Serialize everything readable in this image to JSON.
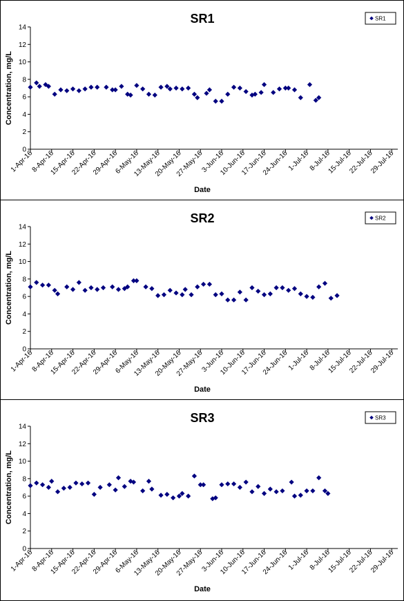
{
  "chart_data": [
    {
      "type": "scatter",
      "title": "SR1",
      "xlabel": "Date",
      "ylabel": "Concentration, mg/L",
      "ylim": [
        0,
        14
      ],
      "yticks": [
        0,
        2,
        4,
        6,
        8,
        10,
        12,
        14
      ],
      "xlim": [
        "2016-04-01",
        "2016-07-31"
      ],
      "xtick_labels": [
        "1-Apr-16",
        "8-Apr-16",
        "15-Apr-16",
        "22-Apr-16",
        "29-Apr-16",
        "6-May-16",
        "13-May-16",
        "20-May-16",
        "27-May-16",
        "3-Jun-16",
        "10-Jun-16",
        "17-Jun-16",
        "24-Jun-16",
        "1-Jul-16",
        "8-Jul-16",
        "15-Jul-16",
        "22-Jul-16",
        "29-Jul-16"
      ],
      "legend": "top-right",
      "grid": false,
      "marker_color": "#000080",
      "series": [
        {
          "name": "SR1",
          "points": [
            [
              "2016-04-01",
              7.1
            ],
            [
              "2016-04-03",
              7.6
            ],
            [
              "2016-04-04",
              7.2
            ],
            [
              "2016-04-06",
              7.4
            ],
            [
              "2016-04-07",
              7.2
            ],
            [
              "2016-04-09",
              6.3
            ],
            [
              "2016-04-11",
              6.8
            ],
            [
              "2016-04-13",
              6.7
            ],
            [
              "2016-04-15",
              6.9
            ],
            [
              "2016-04-17",
              6.7
            ],
            [
              "2016-04-19",
              6.9
            ],
            [
              "2016-04-21",
              7.1
            ],
            [
              "2016-04-23",
              7.1
            ],
            [
              "2016-04-26",
              7.1
            ],
            [
              "2016-04-28",
              6.8
            ],
            [
              "2016-04-29",
              6.8
            ],
            [
              "2016-05-01",
              7.2
            ],
            [
              "2016-05-03",
              6.3
            ],
            [
              "2016-05-04",
              6.2
            ],
            [
              "2016-05-06",
              7.3
            ],
            [
              "2016-05-08",
              6.9
            ],
            [
              "2016-05-10",
              6.3
            ],
            [
              "2016-05-12",
              6.2
            ],
            [
              "2016-05-14",
              7.1
            ],
            [
              "2016-05-16",
              7.2
            ],
            [
              "2016-05-17",
              6.9
            ],
            [
              "2016-05-19",
              7.0
            ],
            [
              "2016-05-21",
              6.9
            ],
            [
              "2016-05-23",
              7.0
            ],
            [
              "2016-05-25",
              6.3
            ],
            [
              "2016-05-26",
              5.9
            ],
            [
              "2016-05-29",
              6.4
            ],
            [
              "2016-05-30",
              6.8
            ],
            [
              "2016-06-01",
              5.5
            ],
            [
              "2016-06-03",
              5.5
            ],
            [
              "2016-06-05",
              6.3
            ],
            [
              "2016-06-07",
              7.1
            ],
            [
              "2016-06-09",
              7.0
            ],
            [
              "2016-06-11",
              6.6
            ],
            [
              "2016-06-13",
              6.2
            ],
            [
              "2016-06-14",
              6.3
            ],
            [
              "2016-06-16",
              6.5
            ],
            [
              "2016-06-17",
              7.4
            ],
            [
              "2016-06-20",
              6.5
            ],
            [
              "2016-06-22",
              6.9
            ],
            [
              "2016-06-24",
              7.0
            ],
            [
              "2016-06-25",
              7.0
            ],
            [
              "2016-06-27",
              6.8
            ],
            [
              "2016-06-29",
              5.9
            ],
            [
              "2016-07-02",
              7.4
            ],
            [
              "2016-07-04",
              5.6
            ],
            [
              "2016-07-05",
              5.9
            ]
          ]
        }
      ]
    },
    {
      "type": "scatter",
      "title": "SR2",
      "xlabel": "Date",
      "ylabel": "Concentration, mg/L",
      "ylim": [
        0,
        14
      ],
      "yticks": [
        0,
        2,
        4,
        6,
        8,
        10,
        12,
        14
      ],
      "xlim": [
        "2016-04-01",
        "2016-07-31"
      ],
      "xtick_labels": [
        "1-Apr-16",
        "8-Apr-16",
        "15-Apr-16",
        "22-Apr-16",
        "29-Apr-16",
        "6-May-16",
        "13-May-16",
        "20-May-16",
        "27-May-16",
        "3-Jun-16",
        "10-Jun-16",
        "17-Jun-16",
        "24-Jun-16",
        "1-Jul-16",
        "8-Jul-16",
        "15-Jul-16",
        "22-Jul-16",
        "29-Jul-16"
      ],
      "legend": "top-right",
      "grid": false,
      "marker_color": "#000080",
      "series": [
        {
          "name": "SR2",
          "points": [
            [
              "2016-04-01",
              7.1
            ],
            [
              "2016-04-03",
              7.6
            ],
            [
              "2016-04-05",
              7.3
            ],
            [
              "2016-04-07",
              7.3
            ],
            [
              "2016-04-09",
              6.7
            ],
            [
              "2016-04-10",
              6.3
            ],
            [
              "2016-04-13",
              7.1
            ],
            [
              "2016-04-15",
              6.8
            ],
            [
              "2016-04-17",
              7.6
            ],
            [
              "2016-04-19",
              6.7
            ],
            [
              "2016-04-21",
              7.0
            ],
            [
              "2016-04-23",
              6.8
            ],
            [
              "2016-04-25",
              7.0
            ],
            [
              "2016-04-28",
              7.1
            ],
            [
              "2016-04-30",
              6.8
            ],
            [
              "2016-05-02",
              6.9
            ],
            [
              "2016-05-03",
              7.1
            ],
            [
              "2016-05-05",
              7.8
            ],
            [
              "2016-05-06",
              7.8
            ],
            [
              "2016-05-09",
              7.1
            ],
            [
              "2016-05-11",
              6.9
            ],
            [
              "2016-05-13",
              6.1
            ],
            [
              "2016-05-15",
              6.2
            ],
            [
              "2016-05-17",
              6.7
            ],
            [
              "2016-05-19",
              6.4
            ],
            [
              "2016-05-21",
              6.2
            ],
            [
              "2016-05-22",
              6.8
            ],
            [
              "2016-05-24",
              6.2
            ],
            [
              "2016-05-26",
              7.1
            ],
            [
              "2016-05-28",
              7.4
            ],
            [
              "2016-05-30",
              7.4
            ],
            [
              "2016-06-01",
              6.2
            ],
            [
              "2016-06-03",
              6.3
            ],
            [
              "2016-06-05",
              5.6
            ],
            [
              "2016-06-07",
              5.6
            ],
            [
              "2016-06-09",
              6.5
            ],
            [
              "2016-06-11",
              5.6
            ],
            [
              "2016-06-13",
              7.0
            ],
            [
              "2016-06-15",
              6.6
            ],
            [
              "2016-06-17",
              6.2
            ],
            [
              "2016-06-19",
              6.3
            ],
            [
              "2016-06-21",
              7.0
            ],
            [
              "2016-06-23",
              7.0
            ],
            [
              "2016-06-25",
              6.7
            ],
            [
              "2016-06-27",
              6.9
            ],
            [
              "2016-06-29",
              6.3
            ],
            [
              "2016-07-01",
              6.0
            ],
            [
              "2016-07-03",
              5.9
            ],
            [
              "2016-07-05",
              7.1
            ],
            [
              "2016-07-07",
              7.5
            ],
            [
              "2016-07-09",
              5.8
            ],
            [
              "2016-07-11",
              6.1
            ]
          ]
        }
      ]
    },
    {
      "type": "scatter",
      "title": "SR3",
      "xlabel": "Date",
      "ylabel": "Concentration, mg/L",
      "ylim": [
        0,
        14
      ],
      "yticks": [
        0,
        2,
        4,
        6,
        8,
        10,
        12,
        14
      ],
      "xlim": [
        "2016-04-01",
        "2016-07-31"
      ],
      "xtick_labels": [
        "1-Apr-16",
        "8-Apr-16",
        "15-Apr-16",
        "22-Apr-16",
        "29-Apr-16",
        "6-May-16",
        "13-May-16",
        "20-May-16",
        "27-May-16",
        "3-Jun-16",
        "10-Jun-16",
        "17-Jun-16",
        "24-Jun-16",
        "1-Jul-16",
        "8-Jul-16",
        "15-Jul-16",
        "22-Jul-16",
        "29-Jul-16"
      ],
      "legend": "top-right",
      "grid": false,
      "marker_color": "#000080",
      "series": [
        {
          "name": "SR3",
          "points": [
            [
              "2016-04-01",
              7.2
            ],
            [
              "2016-04-03",
              7.5
            ],
            [
              "2016-04-05",
              7.3
            ],
            [
              "2016-04-07",
              7.0
            ],
            [
              "2016-04-08",
              7.7
            ],
            [
              "2016-04-10",
              6.5
            ],
            [
              "2016-04-12",
              6.9
            ],
            [
              "2016-04-14",
              7.0
            ],
            [
              "2016-04-16",
              7.5
            ],
            [
              "2016-04-18",
              7.4
            ],
            [
              "2016-04-20",
              7.5
            ],
            [
              "2016-04-22",
              6.2
            ],
            [
              "2016-04-24",
              7.0
            ],
            [
              "2016-04-27",
              7.3
            ],
            [
              "2016-04-29",
              6.7
            ],
            [
              "2016-04-30",
              8.1
            ],
            [
              "2016-05-02",
              7.1
            ],
            [
              "2016-05-04",
              7.7
            ],
            [
              "2016-05-05",
              7.6
            ],
            [
              "2016-05-08",
              6.6
            ],
            [
              "2016-05-10",
              7.7
            ],
            [
              "2016-05-11",
              6.8
            ],
            [
              "2016-05-14",
              6.1
            ],
            [
              "2016-05-16",
              6.2
            ],
            [
              "2016-05-18",
              5.8
            ],
            [
              "2016-05-20",
              6.0
            ],
            [
              "2016-05-21",
              6.3
            ],
            [
              "2016-05-23",
              6.0
            ],
            [
              "2016-05-25",
              8.3
            ],
            [
              "2016-05-27",
              7.3
            ],
            [
              "2016-05-28",
              7.3
            ],
            [
              "2016-05-31",
              5.7
            ],
            [
              "2016-06-01",
              5.8
            ],
            [
              "2016-06-03",
              7.3
            ],
            [
              "2016-06-05",
              7.4
            ],
            [
              "2016-06-07",
              7.4
            ],
            [
              "2016-06-09",
              7.0
            ],
            [
              "2016-06-11",
              7.6
            ],
            [
              "2016-06-13",
              6.5
            ],
            [
              "2016-06-15",
              7.1
            ],
            [
              "2016-06-17",
              6.3
            ],
            [
              "2016-06-19",
              6.8
            ],
            [
              "2016-06-21",
              6.5
            ],
            [
              "2016-06-23",
              6.6
            ],
            [
              "2016-06-26",
              7.6
            ],
            [
              "2016-06-27",
              6.0
            ],
            [
              "2016-06-29",
              6.1
            ],
            [
              "2016-07-01",
              6.6
            ],
            [
              "2016-07-03",
              6.6
            ],
            [
              "2016-07-05",
              8.1
            ],
            [
              "2016-07-07",
              6.6
            ],
            [
              "2016-07-08",
              6.3
            ]
          ]
        }
      ]
    }
  ]
}
